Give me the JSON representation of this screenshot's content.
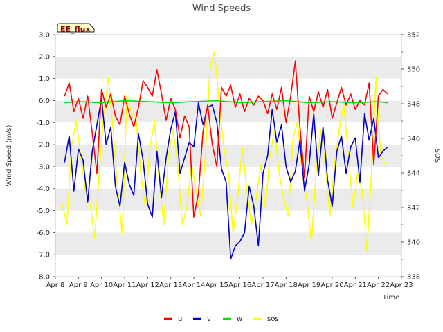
{
  "chart_data": {
    "type": "line",
    "title": "Wind Speeds",
    "badge": "EE_flux",
    "xlabel": "Time",
    "ylabel": "Wind Speed (m/s)",
    "y2label": "SOS",
    "xlim": [
      8,
      23
    ],
    "ylim": [
      -8,
      3
    ],
    "y2lim": [
      338,
      352
    ],
    "x_ticks": [
      8,
      9,
      10,
      11,
      12,
      13,
      14,
      15,
      16,
      17,
      18,
      19,
      20,
      21,
      22,
      23
    ],
    "x_tick_labels": [
      "Apr 8",
      "Apr 9",
      "Apr 10",
      "Apr 11",
      "Apr 12",
      "Apr 13",
      "Apr 14",
      "Apr 15",
      "Apr 16",
      "Apr 17",
      "Apr 18",
      "Apr 19",
      "Apr 20",
      "Apr 21",
      "Apr 22",
      "Apr 23"
    ],
    "y_ticks": [
      -8,
      -7,
      -6,
      -5,
      -4,
      -3,
      -2,
      -1,
      0,
      1,
      2,
      3
    ],
    "y_tick_labels": [
      "-8.0",
      "-7.0",
      "-6.0",
      "-5.0",
      "-4.0",
      "-3.0",
      "-2.0",
      "-1.0",
      "0.0",
      "1.0",
      "2.0",
      "3.0"
    ],
    "y2_ticks": [
      338,
      340,
      342,
      344,
      346,
      348,
      350,
      352
    ],
    "y2_tick_labels": [
      "338",
      "340",
      "342",
      "344",
      "346",
      "348",
      "350",
      "352"
    ],
    "colors": {
      "u": "#ff0000",
      "v": "#0000cc",
      "w": "#00dd00",
      "sos": "#ffff00",
      "band": "#ebebeb"
    },
    "legend": [
      "u",
      "v",
      "w",
      "sos"
    ],
    "series": [
      {
        "name": "u",
        "axis": "left",
        "x": [
          8.4,
          8.6,
          8.8,
          9.0,
          9.2,
          9.4,
          9.6,
          9.8,
          10.0,
          10.2,
          10.4,
          10.6,
          10.8,
          11.0,
          11.2,
          11.4,
          11.6,
          11.8,
          12.0,
          12.2,
          12.4,
          12.6,
          12.8,
          13.0,
          13.2,
          13.4,
          13.6,
          13.8,
          14.0,
          14.2,
          14.4,
          14.6,
          14.8,
          15.0,
          15.2,
          15.4,
          15.6,
          15.8,
          16.0,
          16.2,
          16.4,
          16.6,
          16.8,
          17.0,
          17.2,
          17.4,
          17.6,
          17.8,
          18.0,
          18.2,
          18.4,
          18.6,
          18.8,
          19.0,
          19.2,
          19.4,
          19.6,
          19.8,
          20.0,
          20.2,
          20.4,
          20.6,
          20.8,
          21.0,
          21.2,
          21.4,
          21.6,
          21.8,
          22.0,
          22.2,
          22.4
        ],
        "values": [
          0.2,
          0.8,
          -0.5,
          0.1,
          -0.8,
          0.2,
          -1.5,
          -3.3,
          0.5,
          -0.3,
          0.3,
          -0.7,
          -1.1,
          0.2,
          -0.6,
          -1.2,
          -0.3,
          0.9,
          0.6,
          0.2,
          1.4,
          0.3,
          -0.9,
          0.1,
          -0.4,
          -1.7,
          -0.7,
          -1.2,
          -5.3,
          -4.2,
          -1.4,
          -0.2,
          -2.0,
          -3.0,
          0.6,
          0.2,
          0.7,
          -0.3,
          0.3,
          -0.5,
          0.1,
          -0.2,
          0.2,
          0.0,
          -0.6,
          0.3,
          -0.4,
          0.6,
          -1.0,
          0.2,
          1.8,
          -1.2,
          -3.5,
          0.2,
          -0.5,
          0.4,
          -0.3,
          0.5,
          -0.8,
          -0.1,
          0.6,
          -0.2,
          0.3,
          -0.4,
          0.0,
          -0.2,
          0.8,
          -2.9,
          0.2,
          0.5,
          0.3
        ]
      },
      {
        "name": "v",
        "axis": "left",
        "x": [
          8.4,
          8.6,
          8.8,
          9.0,
          9.2,
          9.4,
          9.6,
          9.8,
          10.0,
          10.2,
          10.4,
          10.6,
          10.8,
          11.0,
          11.2,
          11.4,
          11.6,
          11.8,
          12.0,
          12.2,
          12.4,
          12.6,
          12.8,
          13.0,
          13.2,
          13.4,
          13.6,
          13.8,
          14.0,
          14.2,
          14.4,
          14.6,
          14.8,
          15.0,
          15.2,
          15.4,
          15.6,
          15.8,
          16.0,
          16.2,
          16.4,
          16.6,
          16.8,
          17.0,
          17.2,
          17.4,
          17.6,
          17.8,
          18.0,
          18.2,
          18.4,
          18.6,
          18.8,
          19.0,
          19.2,
          19.4,
          19.6,
          19.8,
          20.0,
          20.2,
          20.4,
          20.6,
          20.8,
          21.0,
          21.2,
          21.4,
          21.6,
          21.8,
          22.0,
          22.2,
          22.4
        ],
        "values": [
          -2.8,
          -1.6,
          -4.1,
          -2.2,
          -2.7,
          -4.6,
          -2.3,
          -1.1,
          0.1,
          -2.0,
          -1.2,
          -3.9,
          -4.8,
          -2.8,
          -3.8,
          -4.3,
          -1.5,
          -2.7,
          -4.7,
          -5.3,
          -2.3,
          -4.4,
          -2.6,
          -1.3,
          -0.5,
          -3.3,
          -2.6,
          -1.9,
          -2.1,
          -0.1,
          -1.1,
          -0.3,
          -0.2,
          -1.0,
          -3.1,
          -3.7,
          -7.2,
          -6.6,
          -6.4,
          -6.0,
          -3.9,
          -4.8,
          -6.6,
          -3.3,
          -2.5,
          -0.4,
          -1.9,
          -1.1,
          -3.0,
          -3.7,
          -3.2,
          -1.8,
          -4.1,
          -2.9,
          -0.6,
          -3.4,
          -1.2,
          -3.6,
          -4.8,
          -2.3,
          -1.6,
          -3.3,
          -2.1,
          -1.7,
          -3.7,
          -0.6,
          -1.8,
          -0.8,
          -2.6,
          -2.3,
          -2.1
        ]
      },
      {
        "name": "w",
        "axis": "left",
        "x": [
          8.4,
          9.0,
          10.0,
          11.0,
          12.0,
          13.0,
          14.0,
          15.0,
          16.0,
          17.0,
          18.0,
          19.0,
          20.0,
          21.0,
          22.0,
          22.4
        ],
        "values": [
          -0.1,
          -0.05,
          -0.1,
          0.0,
          -0.05,
          -0.1,
          -0.05,
          0.0,
          -0.1,
          -0.05,
          0.0,
          -0.1,
          -0.05,
          -0.1,
          -0.05,
          -0.1
        ]
      },
      {
        "name": "sos",
        "axis": "right",
        "x": [
          8.3,
          8.5,
          8.7,
          8.9,
          9.1,
          9.3,
          9.5,
          9.7,
          9.9,
          10.1,
          10.3,
          10.5,
          10.7,
          10.9,
          11.1,
          11.3,
          11.5,
          11.7,
          11.9,
          12.1,
          12.3,
          12.5,
          12.7,
          12.9,
          13.1,
          13.3,
          13.5,
          13.7,
          13.9,
          14.1,
          14.3,
          14.5,
          14.7,
          14.9,
          15.1,
          15.3,
          15.5,
          15.7,
          15.9,
          16.1,
          16.3,
          16.5,
          16.7,
          16.9,
          17.1,
          17.3,
          17.5,
          17.7,
          17.9,
          18.1,
          18.3,
          18.5,
          18.7,
          18.9,
          19.1,
          19.3,
          19.5,
          19.7,
          19.9,
          20.1,
          20.3,
          20.5,
          20.7,
          20.9,
          21.1,
          21.3,
          21.5,
          21.7,
          21.9,
          22.1,
          22.3
        ],
        "values": [
          342.2,
          341.0,
          345.5,
          347.0,
          345.0,
          343.0,
          342.3,
          340.2,
          344.0,
          347.5,
          349.5,
          346.5,
          343.0,
          340.5,
          348.5,
          347.5,
          347.0,
          344.0,
          342.0,
          345.5,
          347.0,
          343.5,
          341.0,
          345.0,
          346.5,
          344.5,
          341.0,
          342.0,
          344.5,
          343.0,
          341.5,
          345.0,
          350.0,
          351.0,
          348.0,
          345.5,
          344.0,
          340.5,
          342.5,
          345.5,
          343.0,
          341.0,
          342.5,
          344.5,
          342.0,
          345.0,
          346.5,
          344.0,
          342.5,
          341.5,
          346.0,
          347.0,
          344.0,
          342.5,
          340.0,
          344.0,
          346.5,
          344.5,
          341.5,
          344.5,
          346.5,
          348.0,
          345.0,
          342.0,
          344.0,
          343.0,
          339.5,
          344.0,
          349.5,
          345.0,
          344.5
        ]
      }
    ]
  }
}
